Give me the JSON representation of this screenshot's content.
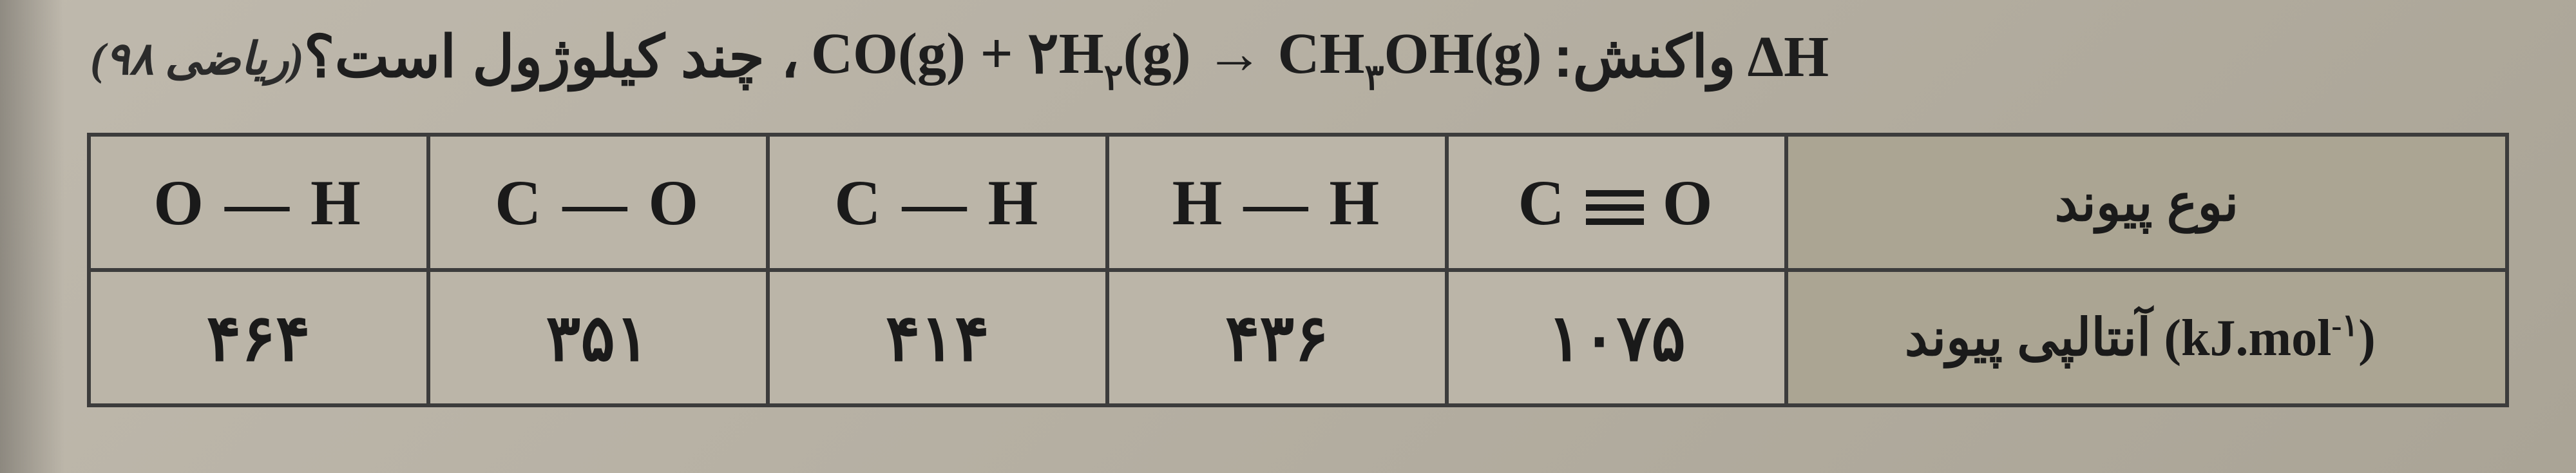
{
  "question": {
    "dh_label": "ΔH",
    "lead_fa": "واکنش:",
    "formula_lhs_co": "CO(g)",
    "formula_plus": "+",
    "formula_lhs_h2_coef": "۲",
    "formula_lhs_h2": "H",
    "formula_lhs_h2_sub": "۲",
    "formula_lhs_h2_tail": "(g)",
    "arrow": "→",
    "formula_rhs_ch": "CH",
    "formula_rhs_ch_sub": "۳",
    "formula_rhs_oh": "OH(g)",
    "tail_fa": "، چند کیلوژول است؟",
    "tag": "(ریاضی ۹۸)"
  },
  "table": {
    "row_header_bond": "نوع پیوند",
    "row_header_enthalpy": "آنتالپی پیوند",
    "unit_prefix": "(kJ.mol",
    "unit_sup": "-۱",
    "unit_suffix": ")",
    "bonds": {
      "c_triple_o_left": "C",
      "c_triple_o_right": "O",
      "hh": "H — H",
      "ch": "C — H",
      "co": "C — O",
      "oh": "O — H"
    },
    "values": {
      "c_triple_o": "۱۰۷۵",
      "hh": "۴۳۶",
      "ch": "۴۱۴",
      "co": "۳۵۱",
      "oh": "۴۶۴"
    }
  },
  "style": {
    "border_color": "#3c3c3c",
    "header_bg": "#aba593",
    "page_bg": "#b8b2a6"
  }
}
